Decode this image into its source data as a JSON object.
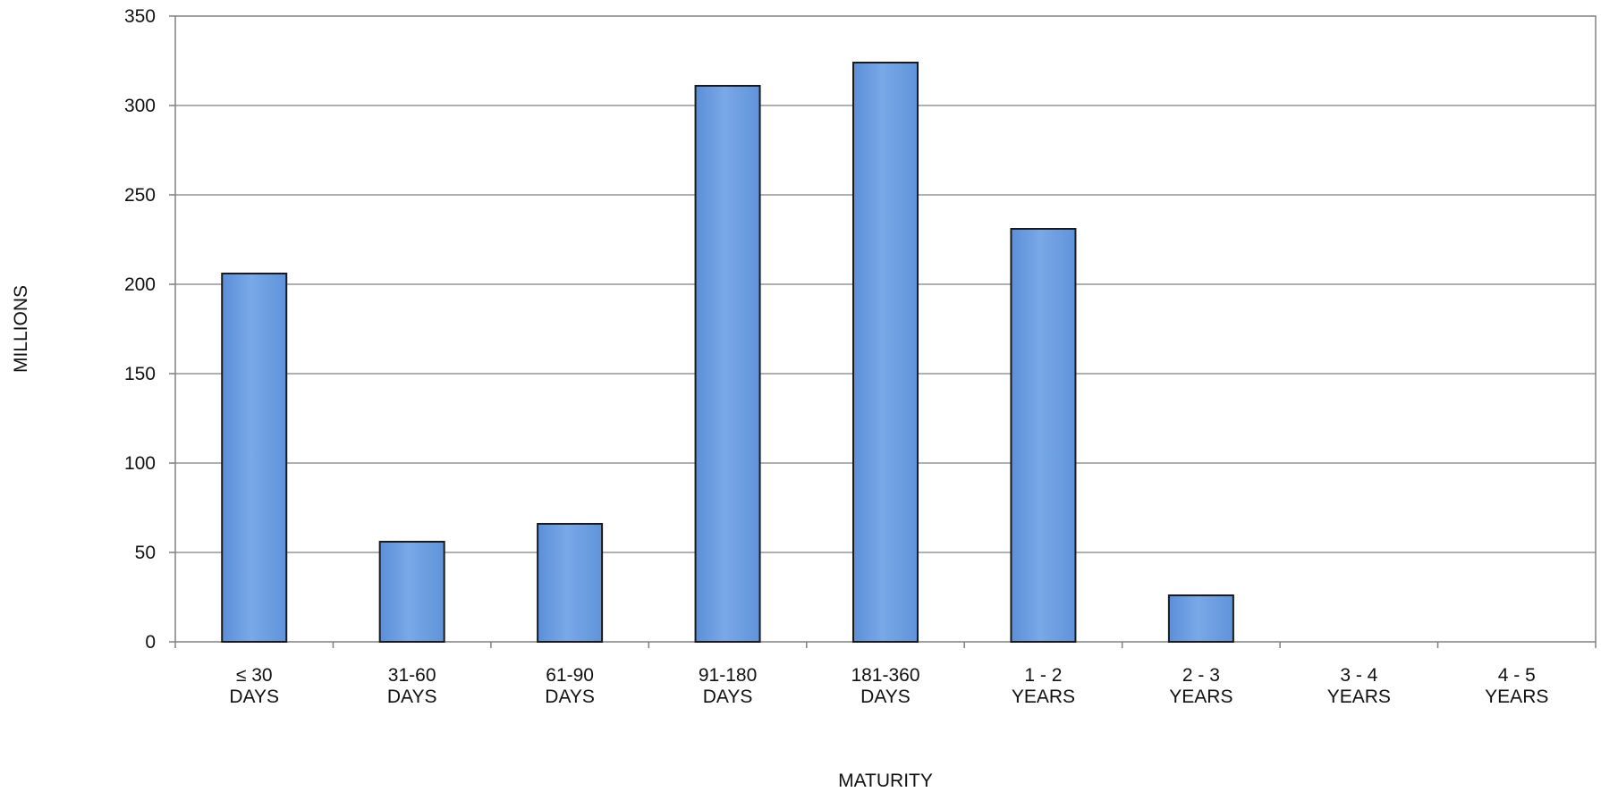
{
  "chart_data": {
    "type": "bar",
    "categories": [
      [
        "≤ 30",
        "DAYS"
      ],
      [
        "31-60",
        "DAYS"
      ],
      [
        "61-90",
        "DAYS"
      ],
      [
        "91-180",
        "DAYS"
      ],
      [
        "181-360",
        "DAYS"
      ],
      [
        "1 - 2",
        "YEARS"
      ],
      [
        "2 - 3",
        "YEARS"
      ],
      [
        "3 - 4",
        "YEARS"
      ],
      [
        "4 - 5",
        "YEARS"
      ]
    ],
    "values": [
      206,
      56,
      66,
      311,
      324,
      231,
      26,
      0,
      0
    ],
    "title": "",
    "xlabel": "MATURITY",
    "ylabel": "MILLIONS",
    "ylim": [
      0,
      350
    ],
    "yticks": [
      0,
      50,
      100,
      150,
      200,
      250,
      300,
      350
    ],
    "grid": true,
    "colors": {
      "bar": "#6f9fe0",
      "bar_stroke": "#1a1a1a",
      "grid": "#808080",
      "axis": "#808080"
    }
  }
}
